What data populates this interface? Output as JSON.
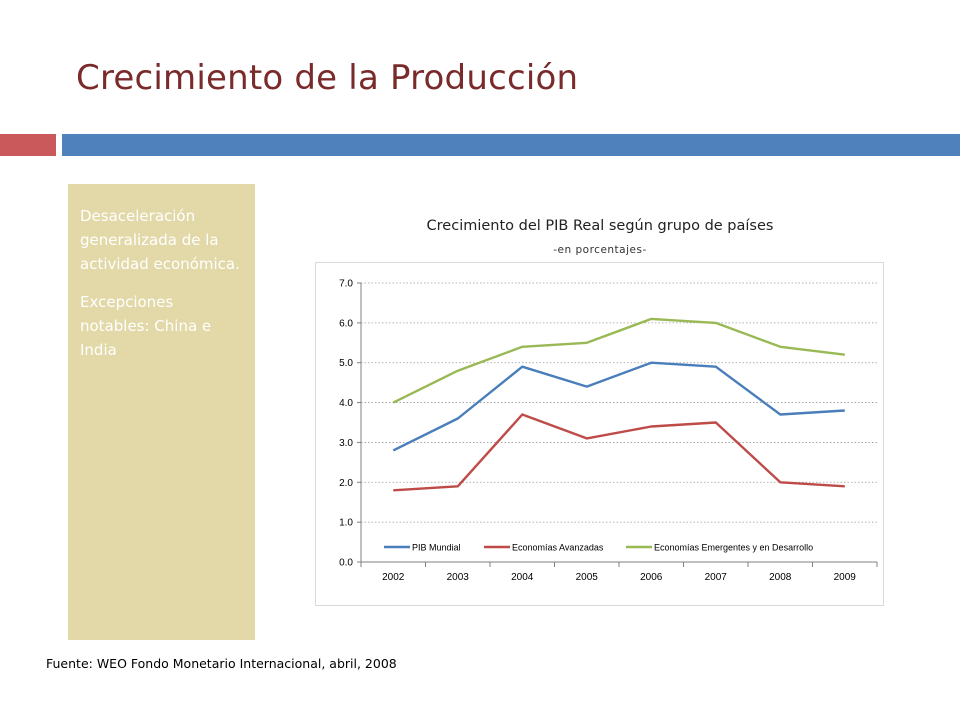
{
  "slide": {
    "title": "Crecimiento de la Producción",
    "panel": {
      "paragraphs": [
        "Desaceleración generalizada de la actividad económica.",
        "Excepciones notables: China e India"
      ]
    },
    "footer": "Fuente: WEO Fondo Monetario Internacional, abril, 2008",
    "accent_colors": {
      "title": "#7a2a2a",
      "red_bar": "#c9595a",
      "blue_bar": "#4f81bd",
      "panel": "#e2d8a8"
    }
  },
  "chart_data": {
    "type": "line",
    "title": "Crecimiento del PIB Real según grupo de países",
    "subtitle": "-en porcentajes-",
    "categories": [
      "2002",
      "2003",
      "2004",
      "2005",
      "2006",
      "2007",
      "2008",
      "2009"
    ],
    "y_ticks": [
      "0.0",
      "1.0",
      "2.0",
      "3.0",
      "4.0",
      "5.0",
      "6.0",
      "7.0"
    ],
    "ylim": [
      0,
      7
    ],
    "grid": "horizontal dotted",
    "legend_position": "bottom-inside",
    "series": [
      {
        "name": "PIB Mundial",
        "color": "#4a7ebb",
        "values": [
          2.8,
          3.6,
          4.9,
          4.4,
          5.0,
          4.9,
          3.7,
          3.8
        ]
      },
      {
        "name": "Economías Avanzadas",
        "color": "#be4b48",
        "values": [
          1.8,
          1.9,
          3.7,
          3.1,
          3.4,
          3.5,
          2.0,
          1.9
        ]
      },
      {
        "name": "Economías Emergentes y en Desarrollo",
        "color": "#98b954",
        "values": [
          4.0,
          4.8,
          5.4,
          5.5,
          6.1,
          6.0,
          5.4,
          5.2
        ]
      }
    ]
  }
}
